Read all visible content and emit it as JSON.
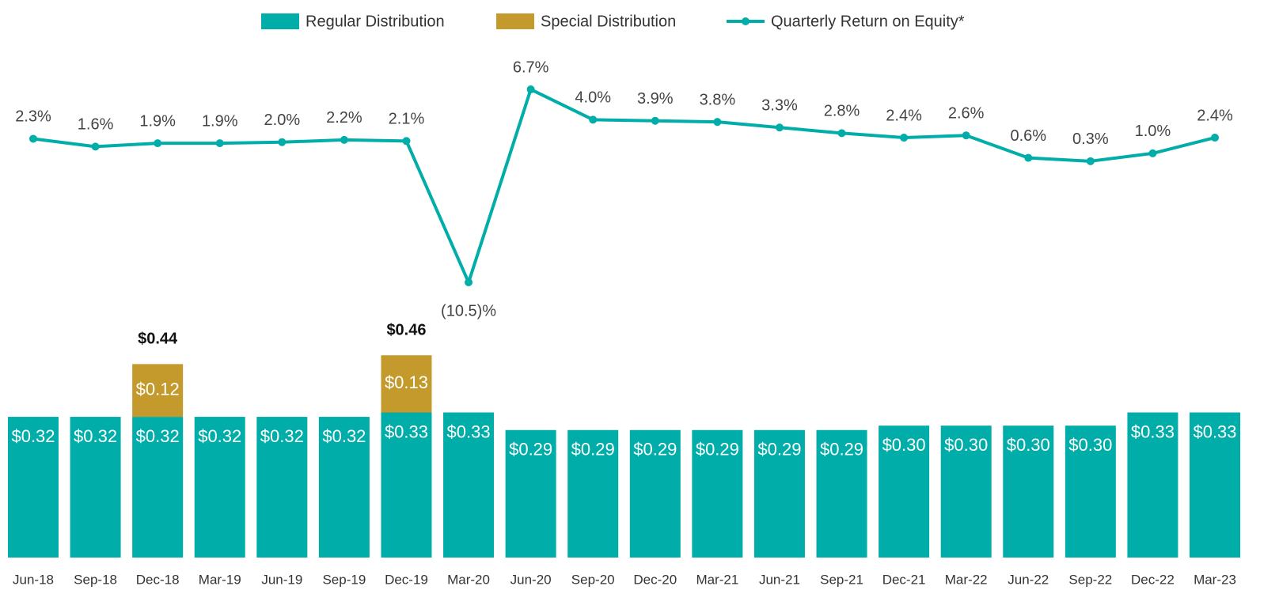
{
  "chart_data": {
    "type": "bar-line",
    "categories": [
      "Jun-18",
      "Sep-18",
      "Dec-18",
      "Mar-19",
      "Jun-19",
      "Sep-19",
      "Dec-19",
      "Mar-20",
      "Jun-20",
      "Sep-20",
      "Dec-20",
      "Mar-21",
      "Jun-21",
      "Sep-21",
      "Dec-21",
      "Mar-22",
      "Jun-22",
      "Sep-22",
      "Dec-22",
      "Mar-23"
    ],
    "series": [
      {
        "name": "Regular Distribution",
        "color": "#00ada8",
        "stack": true,
        "values": [
          0.32,
          0.32,
          0.32,
          0.32,
          0.32,
          0.32,
          0.33,
          0.33,
          0.29,
          0.29,
          0.29,
          0.29,
          0.29,
          0.29,
          0.3,
          0.3,
          0.3,
          0.3,
          0.33,
          0.33
        ],
        "value_labels": [
          "$0.32",
          "$0.32",
          "$0.32",
          "$0.32",
          "$0.32",
          "$0.32",
          "$0.33",
          "$0.33",
          "$0.29",
          "$0.29",
          "$0.29",
          "$0.29",
          "$0.29",
          "$0.29",
          "$0.30",
          "$0.30",
          "$0.30",
          "$0.30",
          "$0.33",
          "$0.33"
        ]
      },
      {
        "name": "Special Distribution",
        "color": "#c39a2b",
        "stack": true,
        "values": [
          null,
          null,
          0.12,
          null,
          null,
          null,
          0.13,
          null,
          null,
          null,
          null,
          null,
          null,
          null,
          null,
          null,
          null,
          null,
          null,
          null
        ],
        "value_labels": [
          null,
          null,
          "$0.12",
          null,
          null,
          null,
          "$0.13",
          null,
          null,
          null,
          null,
          null,
          null,
          null,
          null,
          null,
          null,
          null,
          null,
          null
        ]
      },
      {
        "name": "Quarterly Return on Equity*",
        "color": "#00ada8",
        "axis": "y2",
        "values": [
          2.3,
          1.6,
          1.9,
          1.9,
          2.0,
          2.2,
          2.1,
          -10.5,
          6.7,
          4.0,
          3.9,
          3.8,
          3.3,
          2.8,
          2.4,
          2.6,
          0.6,
          0.3,
          1.0,
          2.4
        ],
        "value_labels": [
          "2.3%",
          "1.6%",
          "1.9%",
          "1.9%",
          "2.0%",
          "2.2%",
          "2.1%",
          "(10.5)%",
          "6.7%",
          "4.0%",
          "3.9%",
          "3.8%",
          "3.3%",
          "2.8%",
          "2.4%",
          "2.6%",
          "0.6%",
          "0.3%",
          "1.0%",
          "2.4%"
        ]
      }
    ],
    "totals": [
      null,
      null,
      0.44,
      null,
      null,
      null,
      0.46,
      null,
      null,
      null,
      null,
      null,
      null,
      null,
      null,
      null,
      null,
      null,
      null,
      null
    ],
    "total_labels": [
      null,
      null,
      "$0.44",
      null,
      null,
      null,
      "$0.46",
      null,
      null,
      null,
      null,
      null,
      null,
      null,
      null,
      null,
      null,
      null,
      null,
      null
    ],
    "ylim": [
      0,
      0.5
    ],
    "y2lim": [
      -12,
      8
    ]
  }
}
